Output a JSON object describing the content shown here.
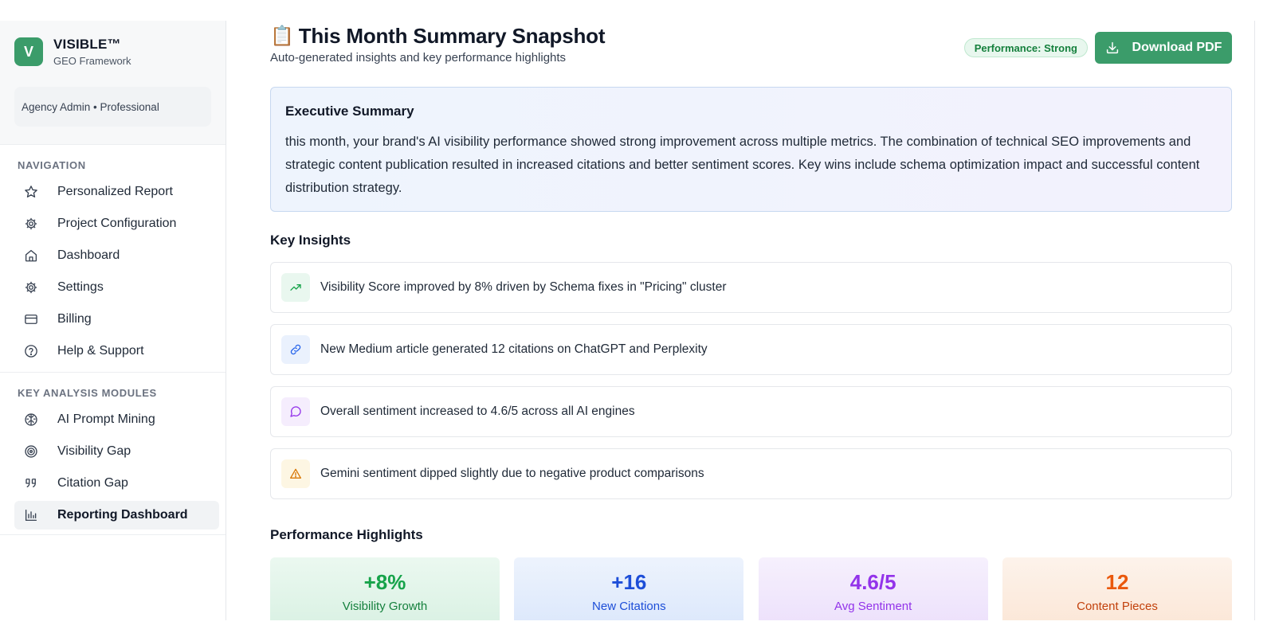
{
  "sidebar": {
    "brand": {
      "logo_letter": "V",
      "name": "VISIBLE™",
      "subtitle": "GEO Framework"
    },
    "account": "Agency Admin • Professional",
    "navigation_label": "NAVIGATION",
    "navigation": [
      {
        "label": "Personalized Report",
        "icon": "star-icon"
      },
      {
        "label": "Project Configuration",
        "icon": "gear-icon"
      },
      {
        "label": "Dashboard",
        "icon": "home-icon"
      },
      {
        "label": "Settings",
        "icon": "gear-icon"
      },
      {
        "label": "Billing",
        "icon": "credit-card-icon"
      },
      {
        "label": "Help & Support",
        "icon": "help-circle-icon"
      }
    ],
    "modules_label": "KEY ANALYSIS MODULES",
    "modules": [
      {
        "label": "AI Prompt Mining",
        "icon": "brain-icon"
      },
      {
        "label": "Visibility Gap",
        "icon": "target-icon"
      },
      {
        "label": "Citation Gap",
        "icon": "quote-icon"
      },
      {
        "label": "Reporting Dashboard",
        "icon": "bar-chart-icon",
        "active": true
      }
    ]
  },
  "header": {
    "title_emoji": "📋",
    "title": "This Month Summary Snapshot",
    "subtitle": "Auto-generated insights and key performance highlights",
    "performance_badge": "Performance: Strong",
    "download_label": "Download PDF"
  },
  "executive_summary": {
    "heading": "Executive Summary",
    "text": "this month, your brand's AI visibility performance showed strong improvement across multiple metrics. The combination of technical SEO improvements and strategic content publication resulted in increased citations and better sentiment scores. Key wins include schema optimization impact and successful content distribution strategy."
  },
  "key_insights": {
    "heading": "Key Insights",
    "items": [
      {
        "text": "Visibility Score improved by 8% driven by Schema fixes in \"Pricing\" cluster",
        "icon": "trending-up-icon",
        "color": "#16a34a",
        "bg": "#e9f7ef"
      },
      {
        "text": "New Medium article generated 12 citations on ChatGPT and Perplexity",
        "icon": "link-icon",
        "color": "#2563eb",
        "bg": "#eaf1fd"
      },
      {
        "text": "Overall sentiment increased to 4.6/5 across all AI engines",
        "icon": "message-circle-icon",
        "color": "#9333ea",
        "bg": "#f5edfd"
      },
      {
        "text": "Gemini sentiment dipped slightly due to negative product comparisons",
        "icon": "alert-triangle-icon",
        "color": "#d97706",
        "bg": "#fdf6e3"
      }
    ]
  },
  "performance_highlights": {
    "heading": "Performance Highlights",
    "items": [
      {
        "value": "+8%",
        "label": "Visibility Growth",
        "color": "#16a34a",
        "label_color": "#15803d",
        "bg_top": "#ebf8f0",
        "bg_bottom": "#d9f1e3"
      },
      {
        "value": "+16",
        "label": "New Citations",
        "color": "#1d4ed8",
        "label_color": "#1d4ed8",
        "bg_top": "#edf3fd",
        "bg_bottom": "#dbe7fb"
      },
      {
        "value": "4.6/5",
        "label": "Avg Sentiment",
        "color": "#9333ea",
        "label_color": "#9333ea",
        "bg_top": "#f6f0fd",
        "bg_bottom": "#ece0fb"
      },
      {
        "value": "12",
        "label": "Content Pieces",
        "color": "#ea580c",
        "label_color": "#c2410c",
        "bg_top": "#fdf3eb",
        "bg_bottom": "#fbe6d6"
      }
    ]
  }
}
